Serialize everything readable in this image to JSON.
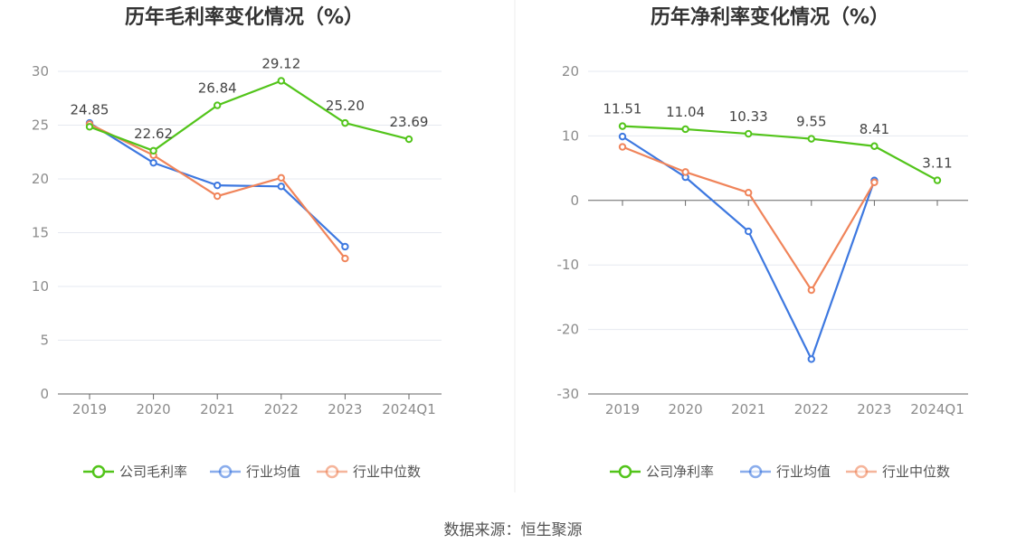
{
  "chart_data": [
    {
      "type": "line",
      "title": "历年毛利率变化情况（%）",
      "categories": [
        "2019",
        "2020",
        "2021",
        "2022",
        "2023",
        "2024Q1"
      ],
      "ylim": [
        0,
        30
      ],
      "yticks": [
        0,
        5,
        10,
        15,
        20,
        25,
        30
      ],
      "grid": true,
      "legend_position": "bottom",
      "series": [
        {
          "name": "公司毛利率",
          "color": "#52c41a",
          "values": [
            24.85,
            22.62,
            26.84,
            29.12,
            25.2,
            23.69
          ],
          "labels": [
            "24.85",
            "22.62",
            "26.84",
            "29.12",
            "25.20",
            "23.69"
          ]
        },
        {
          "name": "行业均值",
          "color": "#3d78e0",
          "values": [
            25.2,
            21.5,
            19.4,
            19.3,
            13.7,
            null
          ]
        },
        {
          "name": "行业中位数",
          "color": "#f0845a",
          "values": [
            25.1,
            22.2,
            18.4,
            20.1,
            12.6,
            null
          ]
        }
      ]
    },
    {
      "type": "line",
      "title": "历年净利率变化情况（%）",
      "categories": [
        "2019",
        "2020",
        "2021",
        "2022",
        "2023",
        "2024Q1"
      ],
      "ylim": [
        -30,
        20
      ],
      "yticks": [
        -30,
        -20,
        -10,
        0,
        10,
        20
      ],
      "grid": true,
      "legend_position": "bottom",
      "series": [
        {
          "name": "公司净利率",
          "color": "#52c41a",
          "values": [
            11.51,
            11.04,
            10.33,
            9.55,
            8.41,
            3.11
          ],
          "labels": [
            "11.51",
            "11.04",
            "10.33",
            "9.55",
            "8.41",
            "3.11"
          ]
        },
        {
          "name": "行业均值",
          "color": "#3d78e0",
          "values": [
            9.9,
            3.6,
            -4.8,
            -24.6,
            3.1,
            null
          ]
        },
        {
          "name": "行业中位数",
          "color": "#f0845a",
          "values": [
            8.3,
            4.4,
            1.2,
            -13.9,
            2.8,
            null
          ]
        }
      ]
    }
  ],
  "source": "数据来源：恒生聚源"
}
